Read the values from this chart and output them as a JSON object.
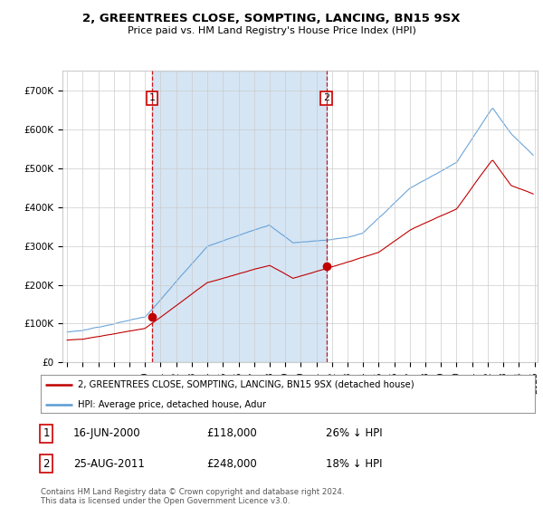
{
  "title": "2, GREENTREES CLOSE, SOMPTING, LANCING, BN15 9SX",
  "subtitle": "Price paid vs. HM Land Registry's House Price Index (HPI)",
  "legend_line1": "2, GREENTREES CLOSE, SOMPTING, LANCING, BN15 9SX (detached house)",
  "legend_line2": "HPI: Average price, detached house, Adur",
  "transaction1_label": "1",
  "transaction1_date": "16-JUN-2000",
  "transaction1_price": "£118,000",
  "transaction1_hpi": "26% ↓ HPI",
  "transaction2_label": "2",
  "transaction2_date": "25-AUG-2011",
  "transaction2_price": "£248,000",
  "transaction2_hpi": "18% ↓ HPI",
  "footer": "Contains HM Land Registry data © Crown copyright and database right 2024.\nThis data is licensed under the Open Government Licence v3.0.",
  "hpi_color": "#5b9bd5",
  "price_color": "#c00000",
  "vline_color": "#cc0000",
  "shaded_color": "#ddeeff",
  "background_color": "#ffffff",
  "grid_color": "#cccccc",
  "ylim": [
    0,
    750000
  ],
  "yticks": [
    0,
    100000,
    200000,
    300000,
    400000,
    500000,
    600000,
    700000
  ],
  "ytick_labels": [
    "£0",
    "£100K",
    "£200K",
    "£300K",
    "£400K",
    "£500K",
    "£600K",
    "£700K"
  ],
  "transaction1_x": 2000.46,
  "transaction1_y": 118000,
  "transaction2_x": 2011.65,
  "transaction2_y": 248000,
  "vline1_x": 2000.46,
  "vline2_x": 2011.65,
  "xmin": 1995.0,
  "xmax": 2025.2
}
